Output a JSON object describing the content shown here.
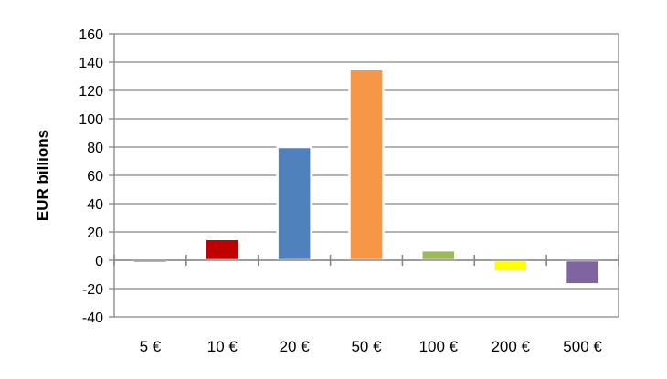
{
  "chart_data": {
    "type": "bar",
    "title": "",
    "xlabel": "",
    "ylabel": "EUR billions",
    "ylim": [
      -40,
      160
    ],
    "yticks": [
      -40,
      -20,
      0,
      20,
      40,
      60,
      80,
      100,
      120,
      140,
      160
    ],
    "grid": true,
    "legend": "none",
    "categories": [
      "5 €",
      "10 €",
      "20 €",
      "50 €",
      "100 €",
      "200 €",
      "500 €"
    ],
    "values": [
      -2,
      15,
      80,
      135,
      7,
      -8,
      -17
    ],
    "colors": [
      "#7f7f7f",
      "#c00000",
      "#4f81bd",
      "#f79646",
      "#9bbb59",
      "#ffff00",
      "#8064a2"
    ]
  }
}
